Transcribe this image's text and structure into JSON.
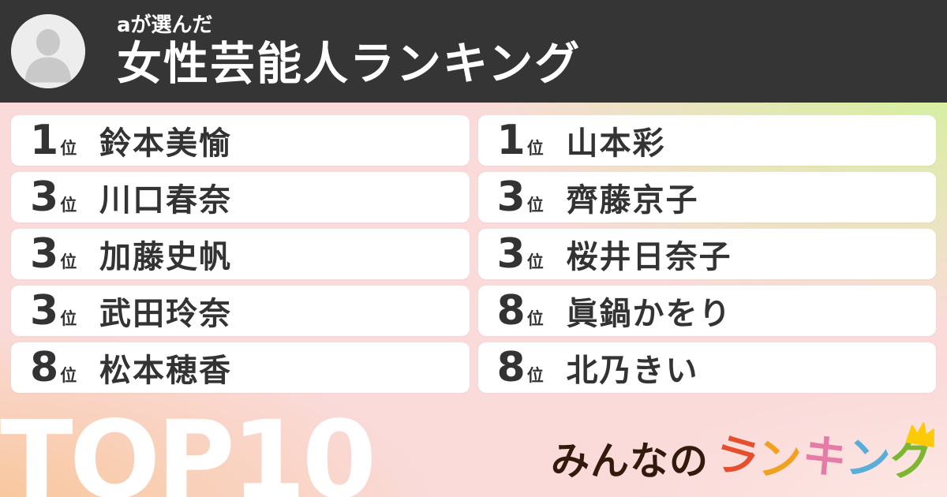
{
  "header": {
    "chooser_label": "aが選んだ",
    "title": "女性芸能人ランキング"
  },
  "ranking": {
    "rank_suffix": "位",
    "columns": [
      {
        "items": [
          {
            "rank": "1",
            "name": "鈴本美愉"
          },
          {
            "rank": "3",
            "name": "川口春奈"
          },
          {
            "rank": "3",
            "name": "加藤史帆"
          },
          {
            "rank": "3",
            "name": "武田玲奈"
          },
          {
            "rank": "8",
            "name": "松本穂香"
          }
        ]
      },
      {
        "items": [
          {
            "rank": "1",
            "name": "山本彩"
          },
          {
            "rank": "3",
            "name": "齊藤京子"
          },
          {
            "rank": "3",
            "name": "桜井日奈子"
          },
          {
            "rank": "8",
            "name": "眞鍋かをり"
          },
          {
            "rank": "8",
            "name": "北乃きい"
          }
        ]
      }
    ]
  },
  "footer": {
    "top_label": "TOP10",
    "logo": {
      "prefix": "みんなの",
      "letters": [
        {
          "char": "ラ",
          "color": "#e64f2e"
        },
        {
          "char": "ン",
          "color": "#efa11f"
        },
        {
          "char": "キ",
          "color": "#e57ca7"
        },
        {
          "char": "ン",
          "color": "#58aed8"
        },
        {
          "char": "グ",
          "color": "#7cb82f"
        }
      ],
      "crown_color": "#fccb06"
    }
  },
  "icons": {
    "avatar": "person-icon",
    "logo_crown": "crown-icon"
  },
  "colors": {
    "header_bg": "#353535",
    "card_bg": "#ffffff",
    "rank_text": "#333333",
    "top_label": "#ffffff",
    "logo_prefix": "#321a0d",
    "gradient_top_left": "#fadbda",
    "gradient_top_right": "#d5f09d",
    "gradient_bottom_left": "#f8c493",
    "gradient_bottom_right": "#fde8e4"
  }
}
